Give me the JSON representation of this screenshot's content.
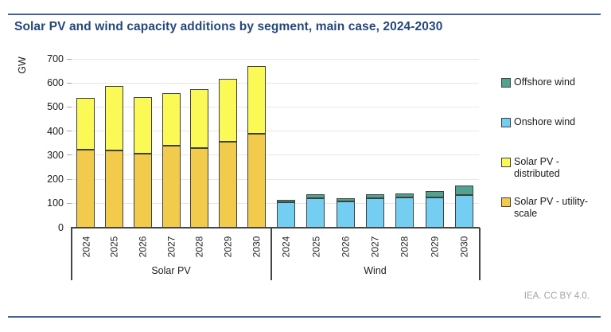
{
  "page": {
    "title": "Solar PV and wind capacity additions by segment, main case, 2024-2030",
    "footer": "IEA. CC BY 4.0.",
    "accent_rule_color": "#44639C",
    "title_color": "#25477B",
    "footer_color": "#A3A3A3"
  },
  "chart_data": {
    "type": "bar",
    "stacked": true,
    "title": "Solar PV and wind capacity additions by segment, main case, 2024-2030",
    "xlabel": "",
    "ylabel": "GW",
    "ylim": [
      0,
      700
    ],
    "ytick_interval": 100,
    "yticks": [
      0,
      100,
      200,
      300,
      400,
      500,
      600,
      700
    ],
    "grid": true,
    "legend_position": "right",
    "groups": [
      {
        "label": "Solar PV",
        "categories": [
          "2024",
          "2025",
          "2026",
          "2027",
          "2028",
          "2029",
          "2030"
        ],
        "series": [
          {
            "name": "Solar PV - utility-scale",
            "color": "#F2CA4C",
            "values": [
              324,
              320,
              306,
              339,
              330,
              357,
              390
            ]
          },
          {
            "name": "Solar PV - distributed",
            "color": "#FBF955",
            "values": [
              214,
              266,
              235,
              220,
              244,
              260,
              281
            ]
          }
        ]
      },
      {
        "label": "Wind",
        "categories": [
          "2024",
          "2025",
          "2026",
          "2027",
          "2028",
          "2029",
          "2030"
        ],
        "series": [
          {
            "name": "Onshore wind",
            "color": "#74CEF2",
            "values": [
              105,
              121,
              107,
              121,
              123,
              125,
              135
            ]
          },
          {
            "name": "Offshore wind",
            "color": "#4FA38F",
            "values": [
              10,
              15,
              13,
              18,
              19,
              26,
              38
            ]
          }
        ]
      }
    ],
    "legend": [
      {
        "label": "Offshore wind",
        "color": "#4FA38F"
      },
      {
        "label": "Onshore wind",
        "color": "#74CEF2"
      },
      {
        "label": "Solar PV - distributed",
        "color": "#FBF955"
      },
      {
        "label": "Solar PV - utility-scale",
        "color": "#F2CA4C"
      }
    ],
    "bar_border_color": "#3F3F3F",
    "gridline_color": "#E7E7E7",
    "axis_line_color": "#454545"
  }
}
